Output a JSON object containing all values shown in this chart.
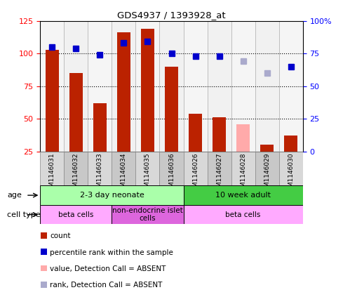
{
  "title": "GDS4937 / 1393928_at",
  "samples": [
    "GSM1146031",
    "GSM1146032",
    "GSM1146033",
    "GSM1146034",
    "GSM1146035",
    "GSM1146036",
    "GSM1146026",
    "GSM1146027",
    "GSM1146028",
    "GSM1146029",
    "GSM1146030"
  ],
  "count_values": [
    103,
    85,
    62,
    116,
    119,
    90,
    54,
    51,
    null,
    30,
    37
  ],
  "count_absent": [
    null,
    null,
    null,
    null,
    null,
    null,
    null,
    null,
    46,
    null,
    null
  ],
  "rank_values": [
    80,
    79,
    74,
    83,
    84,
    75,
    73,
    73,
    null,
    null,
    65
  ],
  "rank_absent": [
    null,
    null,
    null,
    null,
    null,
    null,
    null,
    null,
    69,
    60,
    null
  ],
  "ylim_left": [
    25,
    125
  ],
  "ylim_right": [
    0,
    100
  ],
  "yticks_left": [
    25,
    50,
    75,
    100,
    125
  ],
  "yticks_right": [
    0,
    25,
    50,
    75,
    100
  ],
  "yticklabels_left": [
    "25",
    "50",
    "75",
    "100",
    "125"
  ],
  "yticklabels_right": [
    "0",
    "25",
    "50",
    "75",
    "100%"
  ],
  "bar_color": "#bb2200",
  "bar_absent_color": "#ffaaaa",
  "rank_color": "#0000cc",
  "rank_absent_color": "#aaaacc",
  "age_groups": [
    {
      "label": "2-3 day neonate",
      "start": 0,
      "end": 6,
      "color": "#aaffaa"
    },
    {
      "label": "10 week adult",
      "start": 6,
      "end": 11,
      "color": "#44cc44"
    }
  ],
  "cell_groups": [
    {
      "label": "beta cells",
      "start": 0,
      "end": 3,
      "color": "#ffaaff"
    },
    {
      "label": "non-endocrine islet\ncells",
      "start": 3,
      "end": 6,
      "color": "#dd66dd"
    },
    {
      "label": "beta cells",
      "start": 6,
      "end": 11,
      "color": "#ffaaff"
    }
  ],
  "legend_items": [
    {
      "label": "count",
      "color": "#bb2200"
    },
    {
      "label": "percentile rank within the sample",
      "color": "#0000cc"
    },
    {
      "label": "value, Detection Call = ABSENT",
      "color": "#ffaaaa"
    },
    {
      "label": "rank, Detection Call = ABSENT",
      "color": "#aaaacc"
    }
  ],
  "age_label": "age",
  "cell_label": "cell type",
  "bar_width": 0.55,
  "marker_size": 6,
  "label_box_color_even": "#d8d8d8",
  "label_box_color_odd": "#c8c8c8",
  "rank_scale": 1.0
}
